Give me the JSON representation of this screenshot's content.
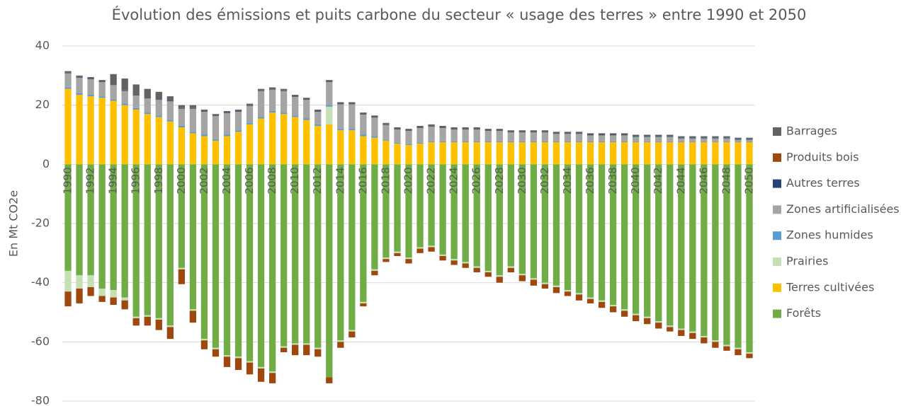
{
  "chart_data": {
    "type": "bar",
    "stacked": true,
    "title": "Évolution des émissions et puits carbone du secteur « usage des terres » entre 1990 et 2050",
    "y_label": "En Mt CO2e",
    "categories": [
      "1990",
      null,
      "1992",
      null,
      "1994",
      null,
      "1996",
      null,
      "1998",
      null,
      "2000",
      null,
      "2002",
      null,
      "2004",
      null,
      "2006",
      null,
      "2008",
      null,
      "2010",
      null,
      "2012",
      null,
      "2014",
      null,
      "2016",
      null,
      "2018",
      null,
      "2020",
      null,
      "2022",
      null,
      "2024",
      null,
      "2026",
      null,
      "2028",
      null,
      "2030",
      null,
      "2032",
      null,
      "2034",
      null,
      "2036",
      null,
      "2038",
      null,
      "2040",
      null,
      "2042",
      null,
      "2044",
      null,
      "2046",
      null,
      "2048",
      null,
      "2050"
    ],
    "ylim": [
      -80,
      40
    ],
    "yticks": [
      -80,
      -60,
      -40,
      -20,
      0,
      20,
      40
    ],
    "grid": true,
    "legend": "right",
    "series": [
      {
        "name": "Forêts",
        "color": "#70ad47",
        "values": [
          -36,
          -37.5,
          -37.5,
          -42,
          -42.5,
          -45,
          -51.5,
          -51,
          -52,
          -54.5,
          -35,
          -49,
          -59,
          -62,
          -64.5,
          -65,
          -66.5,
          -68.5,
          -70,
          -61.5,
          -60.5,
          -60.5,
          -62,
          -72,
          -59.5,
          -56,
          -46.5,
          -35.5,
          -31.5,
          -29.5,
          -31.5,
          -28,
          -27.5,
          -30.5,
          -32,
          -33,
          -34.5,
          -36,
          -37.5,
          -34.5,
          -37,
          -38.5,
          -40,
          -41,
          -42.5,
          -43.5,
          -45,
          -46,
          -47.5,
          -49,
          -50.5,
          -51.5,
          -53,
          -54.5,
          -55.5,
          -56.5,
          -58,
          -59.5,
          -61,
          -62,
          -63.5
        ]
      },
      {
        "name": "Terres cultivées",
        "color": "#ffc000",
        "values": [
          25.5,
          23.5,
          23,
          22.5,
          21.5,
          20,
          18.5,
          17,
          16,
          14.5,
          12.5,
          10.5,
          9.5,
          8,
          9.5,
          11,
          13.5,
          15.5,
          17.5,
          17,
          16,
          15,
          13,
          13.5,
          11.5,
          11.5,
          9.5,
          9,
          8,
          7,
          6.5,
          7,
          7.5,
          7.5,
          7.5,
          7.5,
          7.5,
          7.5,
          7.5,
          7.5,
          7.5,
          7.5,
          7.5,
          7.5,
          7.5,
          7.5,
          7.5,
          7.5,
          7.5,
          7.5,
          7.5,
          7.5,
          7.5,
          7.5,
          7.5,
          7.5,
          7.5,
          7.5,
          7.5,
          7.5,
          7.5
        ]
      },
      {
        "name": "Prairies",
        "color": "#c5e0b4",
        "values": [
          -7,
          -4.5,
          -4,
          -2.5,
          -2.5,
          -1,
          -0.5,
          -0.5,
          -0.5,
          -0.5,
          -0.5,
          -0.5,
          -0.5,
          -0.5,
          -0.5,
          -0.5,
          -0.5,
          -0.5,
          -0.5,
          -0.5,
          -0.5,
          -0.5,
          -0.5,
          6,
          -0.5,
          -0.5,
          -0.5,
          -0.5,
          -0.5,
          -0.5,
          -0.5,
          -0.5,
          -0.5,
          -0.5,
          -0.5,
          -0.5,
          -0.5,
          -0.5,
          -0.5,
          -0.5,
          -0.5,
          -0.5,
          -0.5,
          -0.5,
          -0.5,
          -0.5,
          -0.5,
          -0.5,
          -0.5,
          -0.5,
          -0.5,
          -0.5,
          -0.5,
          -0.5,
          -0.5,
          -0.5,
          -0.5,
          -0.5,
          -0.5,
          -0.5,
          -0.5
        ]
      },
      {
        "name": "Zones humides",
        "color": "#5b9bd5",
        "values": [
          0.5,
          0.5,
          0.5,
          0.5,
          0.5,
          0.5,
          0.5,
          0.5,
          0.5,
          0.5,
          0.5,
          0.5,
          0.5,
          0.5,
          0.5,
          0.5,
          0.5,
          0.5,
          0.5,
          0.5,
          0.5,
          0.5,
          0.5,
          0.5,
          0.5,
          0.5,
          0.5,
          0.5,
          0.3,
          0.3,
          0.3,
          0.3,
          0.3,
          0.3,
          0.3,
          0.3,
          0.3,
          0.3,
          0.3,
          0.3,
          0.3,
          0.3,
          0.3,
          0.3,
          0.3,
          0.3,
          0.3,
          0.3,
          0.3,
          0.3,
          0.3,
          0.3,
          0.3,
          0.3,
          0.3,
          0.3,
          0.3,
          0.3,
          0.3,
          0.3,
          0.3
        ]
      },
      {
        "name": "Zones artificialisées",
        "color": "#a5a5a5",
        "values": [
          4.8,
          5.3,
          5.3,
          4.8,
          4.8,
          4.3,
          4.3,
          4.8,
          5.3,
          6.3,
          5.8,
          7.8,
          7.8,
          7.8,
          7.3,
          6.3,
          5.8,
          8.8,
          7.3,
          7.3,
          6.3,
          6.3,
          4.3,
          7.8,
          8.3,
          8.3,
          6.8,
          6.3,
          5,
          4.5,
          4.5,
          5,
          5,
          4.5,
          4,
          4,
          4,
          3.5,
          3.5,
          3,
          3,
          3,
          3,
          2.5,
          2.5,
          2.5,
          2,
          2,
          2,
          2,
          1.5,
          1.5,
          1.5,
          1.5,
          1,
          1,
          1,
          1,
          1,
          0.5,
          0.5
        ]
      },
      {
        "name": "Autres terres",
        "color": "#264478",
        "values": [
          0.2,
          0.2,
          0.2,
          0.2,
          0.2,
          0.2,
          0.2,
          0.2,
          0.2,
          0.2,
          0.2,
          0.2,
          0.2,
          0.2,
          0.2,
          0.2,
          0.2,
          0.2,
          0.2,
          0.2,
          0.2,
          0.2,
          0.2,
          0.2,
          0.2,
          0.2,
          0.2,
          0.2,
          0.2,
          0.2,
          0.2,
          0.2,
          0.2,
          0.2,
          0.2,
          0.2,
          0.2,
          0.2,
          0.2,
          0.2,
          0.2,
          0.2,
          0.2,
          0.2,
          0.2,
          0.2,
          0.2,
          0.2,
          0.2,
          0.2,
          0.2,
          0.2,
          0.2,
          0.2,
          0.2,
          0.2,
          0.2,
          0.2,
          0.2,
          0.2,
          0.2
        ]
      },
      {
        "name": "Produits bois",
        "color": "#9e480e",
        "values": [
          -5,
          -5,
          -3,
          -2,
          -2.5,
          -3,
          -2.5,
          -3,
          -3.5,
          -4,
          -5,
          -4,
          -3,
          -2.5,
          -3.5,
          -4,
          -4,
          -4.5,
          -3.5,
          -1.5,
          -3.5,
          -3.5,
          -2.5,
          -2,
          -2,
          -2,
          -1,
          -1.5,
          -1,
          -1,
          -1.5,
          -1.5,
          -1.5,
          -1.5,
          -1.5,
          -1.5,
          -1.5,
          -1.5,
          -2,
          -1.5,
          -2,
          -2,
          -1.5,
          -2,
          -1.5,
          -2,
          -1.5,
          -2,
          -2,
          -2,
          -2,
          -2,
          -2,
          -1.5,
          -2,
          -2,
          -2,
          -2,
          -1.5,
          -2,
          -1.5
        ]
      },
      {
        "name": "Barrages",
        "color": "#636363",
        "values": [
          0.5,
          0.5,
          0.5,
          0.5,
          3.5,
          4,
          3.5,
          3,
          2.5,
          1.5,
          1,
          1,
          0.5,
          0.5,
          0.5,
          0.5,
          0.5,
          0.5,
          0.5,
          0.5,
          0.5,
          0.5,
          0.5,
          0.5,
          0.5,
          0.5,
          0.5,
          0.5,
          0.5,
          0.5,
          0.5,
          0.5,
          0.5,
          0.5,
          0.5,
          0.5,
          0.5,
          0.5,
          0.5,
          0.5,
          0.5,
          0.5,
          0.5,
          0.5,
          0.5,
          0.5,
          0.5,
          0.5,
          0.5,
          0.5,
          0.5,
          0.5,
          0.5,
          0.5,
          0.5,
          0.5,
          0.5,
          0.5,
          0.5,
          0.5,
          0.5
        ]
      }
    ]
  }
}
